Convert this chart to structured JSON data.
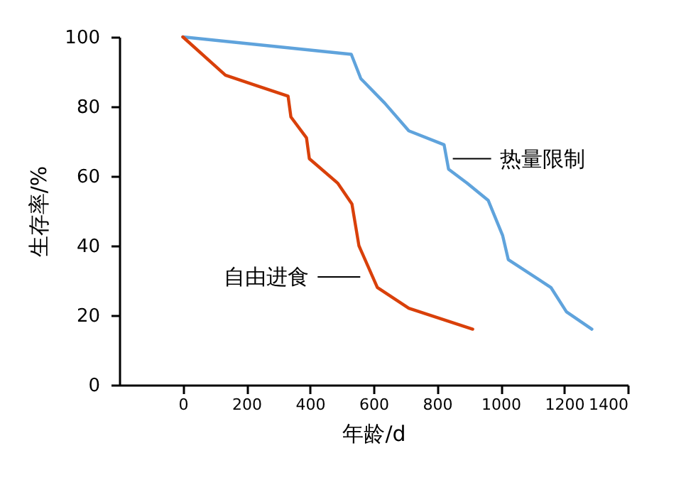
{
  "chart_data": {
    "type": "line",
    "xlabel": "年龄/d",
    "ylabel": "生存率/%",
    "xlim": [
      -200,
      1400
    ],
    "ylim": [
      0,
      100
    ],
    "xticks": [
      0,
      200,
      400,
      600,
      800,
      1000,
      1200,
      1400
    ],
    "yticks": [
      0,
      20,
      40,
      60,
      80,
      100
    ],
    "marker": "none",
    "line_style": "solid",
    "series": [
      {
        "color": "#5fa3dc",
        "x": [
          0,
          530,
          560,
          635,
          711,
          822,
          836,
          894,
          961,
          1006,
          1024,
          1158,
          1207,
          1287
        ],
        "values": [
          100,
          95,
          88,
          81,
          73,
          69,
          62,
          58,
          53,
          43,
          36,
          28,
          21,
          16
        ]
      },
      {
        "color": "#d9400a",
        "x": [
          0,
          134,
          232,
          331,
          340,
          389,
          398,
          487,
          532,
          554,
          612,
          711,
          912
        ],
        "values": [
          100,
          89,
          86,
          83,
          77,
          71,
          65,
          58,
          52,
          40,
          28,
          22,
          16
        ]
      }
    ],
    "annotations": [
      {
        "text": "热量限制",
        "x": 836,
        "y": 65
      },
      {
        "text": "自由进食",
        "x": 585,
        "y": 31
      }
    ]
  }
}
